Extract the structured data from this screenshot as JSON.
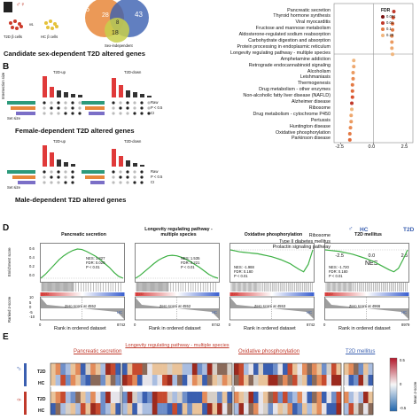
{
  "panel_a": {
    "sex_symbols": "♂♀",
    "t2d_cells": "T2D β cells",
    "hc_cells": "HC β cells",
    "vs": "vs.",
    "sex_independent": "Sex-independent",
    "caption": "Candidate sex-dependent T2D altered genes",
    "venn": {
      "left": "56",
      "mid_left": "28",
      "mid_right": "43",
      "center": "8",
      "bottom": "18"
    }
  },
  "panel_b": {
    "letter": "B",
    "female_caption": "Female-dependent T2D altered genes",
    "male_caption": "Male-dependent T2D altered genes",
    "t2d_up": "T2D-up",
    "t2d_down": "T2D-down",
    "set_size": "Set size",
    "raw": "Raw",
    "p05": "P < 0.5",
    "ci": "CI",
    "intersection_size": "Intersection size"
  },
  "panel_c": {
    "pathways_top": [
      "Pancreatic secretion",
      "Thyroid hormone synthesis",
      "Viral myocarditis",
      "Fructose and mannose metabolism",
      "Aldosterone-regulated sodium reabsorption",
      "Carbohydrate digestion and absorption",
      "Protein processing in endoplasmic reticulum",
      "Longevity regulating pathway - multiple species",
      "Amphetamine addiction",
      "Retrograde endocannabinoid signaling",
      "Alcoholism",
      "Leishmaniasis",
      "Thermogenesis",
      "Drug metabolism - other enzymes",
      "Non-alcoholic fatty liver disease (NAFLD)",
      "Alzheimer disease",
      "Ribosome",
      "Drug metabolism - cytochrome P450",
      "Pertussis",
      "Huntington disease",
      "Oxidative phosphorylation",
      "Parkinson disease"
    ],
    "pathways_bottom": [
      "Ribosome",
      "Type II diabetes mellitus",
      "Prolactin signaling pathway"
    ],
    "nes_top": [
      1.55,
      1.5,
      1.45,
      1.45,
      1.4,
      1.4,
      1.4,
      1.45,
      -1.5,
      -1.5,
      -1.55,
      -1.55,
      -1.6,
      -1.6,
      -1.6,
      -1.65,
      -1.65,
      -1.7,
      -1.7,
      -1.75,
      -1.8,
      -1.8
    ],
    "nes_bottom": [
      1.9,
      -1.5,
      -1.55
    ],
    "ticks": [
      "-2.5",
      "0.0",
      "2.5"
    ],
    "xlabel": "NES",
    "legend_title": "FDR",
    "legend": [
      "0.001",
      "0.01",
      "0.1",
      "0.29"
    ],
    "hc_label": "HC",
    "t2d_label": "T2D",
    "male_symbol": "♂"
  },
  "panel_d": {
    "letter": "D",
    "ylabel_top": "Enrichment score",
    "ylabel_bottom": "Ranked z-score",
    "xlabel": "Rank in ordered dataset",
    "t2d": "T2D",
    "hc": "HC",
    "panels": [
      {
        "title": "Pancreatic secretion",
        "stat1": "NES: 1.827",
        "stat2": "FDR: 0.020",
        "stat3": "P < 0.01",
        "zero": "Zero score at 4552",
        "end": "8742"
      },
      {
        "title": "Longevity regulating pathway - multiple species",
        "stat1": "NES: 1.535",
        "stat2": "FDR: 0.221",
        "stat3": "P < 0.01",
        "zero": "Zero score at 4552",
        "end": "8742"
      },
      {
        "title": "Oxidative phosphorylation",
        "stat1": "NES: -1.988",
        "stat2": "FDR: 0.180",
        "stat3": "P < 0.01",
        "zero": "Zero score at 4553",
        "end": "8742"
      },
      {
        "title": "T2D mellitus",
        "stat1": "NES: -1.720",
        "stat2": "FDR: 0.180",
        "stat3": "P < 0.01",
        "zero": "Zero score at 4966",
        "end": "8979"
      }
    ],
    "yticks_top": [
      "0.6",
      "0.4",
      "0.2",
      "0.0"
    ],
    "yticks_bottom": [
      "10",
      "5",
      "0",
      "-5",
      "-10"
    ],
    "x0": "0"
  },
  "panel_e": {
    "letter": "E",
    "labels": [
      "Pancreatic secretion",
      "Longevity regulating pathway - multiple species",
      "Oxidative phosphorylation",
      "T2D mellitus"
    ],
    "rows": [
      "T2D",
      "HC",
      "T2D",
      "HC"
    ],
    "scale_ticks": [
      "0.5",
      "0",
      "-0.5"
    ],
    "scale_label": "Mean z-score",
    "male_symbol": "♂",
    "female_symbol": "♀"
  }
}
